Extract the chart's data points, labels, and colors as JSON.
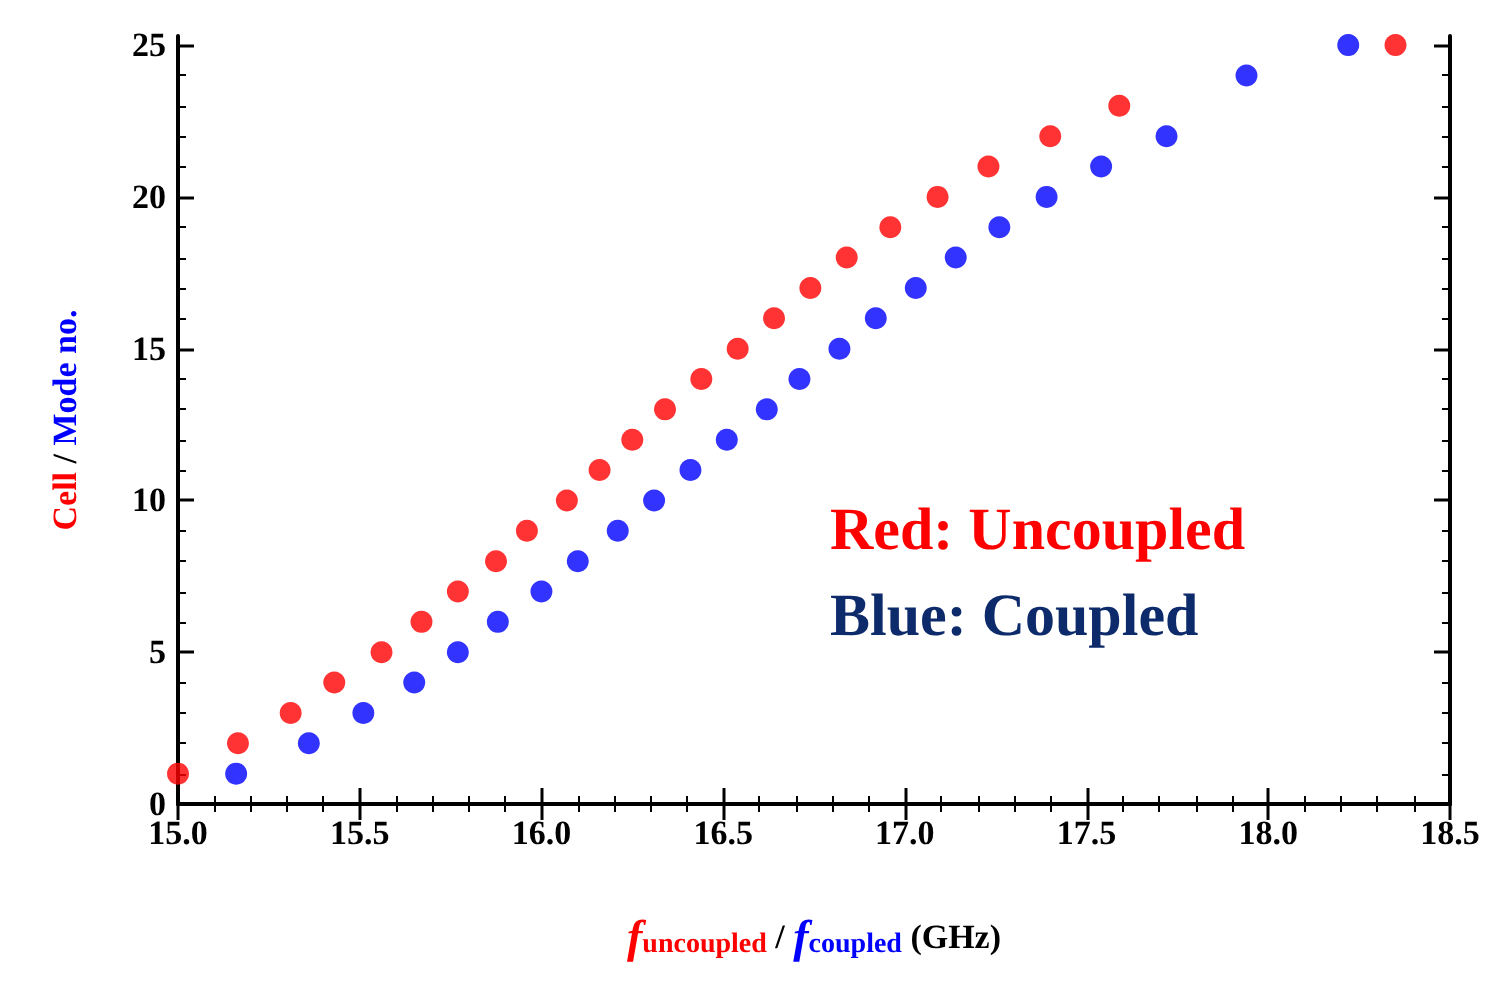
{
  "chart_data": {
    "type": "scatter",
    "xlabel": "f$_{uncoupled}$ / f$_{coupled}$ (GHz)",
    "ylabel": "Cell / Mode no.",
    "series": [
      {
        "color": "#ff0000",
        "x": [
          15.0,
          15.165,
          15.31,
          15.43,
          15.56,
          15.67,
          15.77,
          15.875,
          15.96,
          16.07,
          16.16,
          16.25,
          16.34,
          16.44,
          16.54,
          16.64,
          16.74,
          16.84,
          16.96,
          17.09,
          17.23,
          17.4,
          17.59,
          18.35
        ],
        "values": [
          1,
          2,
          3,
          4,
          5,
          6,
          7,
          8,
          9,
          10,
          11,
          12,
          13,
          14,
          15,
          16,
          17,
          18,
          19,
          20,
          21,
          22,
          23,
          25
        ]
      },
      {
        "color": "#0000ff",
        "x": [
          15.16,
          15.36,
          15.51,
          15.65,
          15.77,
          15.88,
          16.0,
          16.1,
          16.21,
          16.31,
          16.41,
          16.51,
          16.62,
          16.71,
          16.82,
          16.92,
          17.03,
          17.14,
          17.26,
          17.39,
          17.54,
          17.72,
          17.94,
          18.22
        ],
        "values": [
          1,
          2,
          3,
          4,
          5,
          6,
          7,
          8,
          9,
          10,
          11,
          12,
          13,
          14,
          15,
          16,
          17,
          18,
          19,
          20,
          21,
          22,
          24,
          25
        ]
      }
    ],
    "xlim": [
      15.0,
      18.5
    ],
    "xticks": [
      {
        "value": 15.0,
        "label": "15.0"
      },
      {
        "value": 15.5,
        "label": "15.5"
      },
      {
        "value": 16.0,
        "label": "16.0"
      },
      {
        "value": 16.5,
        "label": "16.5"
      },
      {
        "value": 17.0,
        "label": "17.0"
      },
      {
        "value": 17.5,
        "label": "17.5"
      },
      {
        "value": 18.0,
        "label": "18.0"
      },
      {
        "value": 18.5,
        "label": "18.5"
      }
    ],
    "ylim": [
      0,
      25.3
    ],
    "yticks": [
      0,
      5,
      10,
      15,
      20,
      25
    ],
    "annotations": [
      "Red: Uncoupled",
      "Blue: Coupled"
    ],
    "marker": "circle",
    "grid": false
  }
}
